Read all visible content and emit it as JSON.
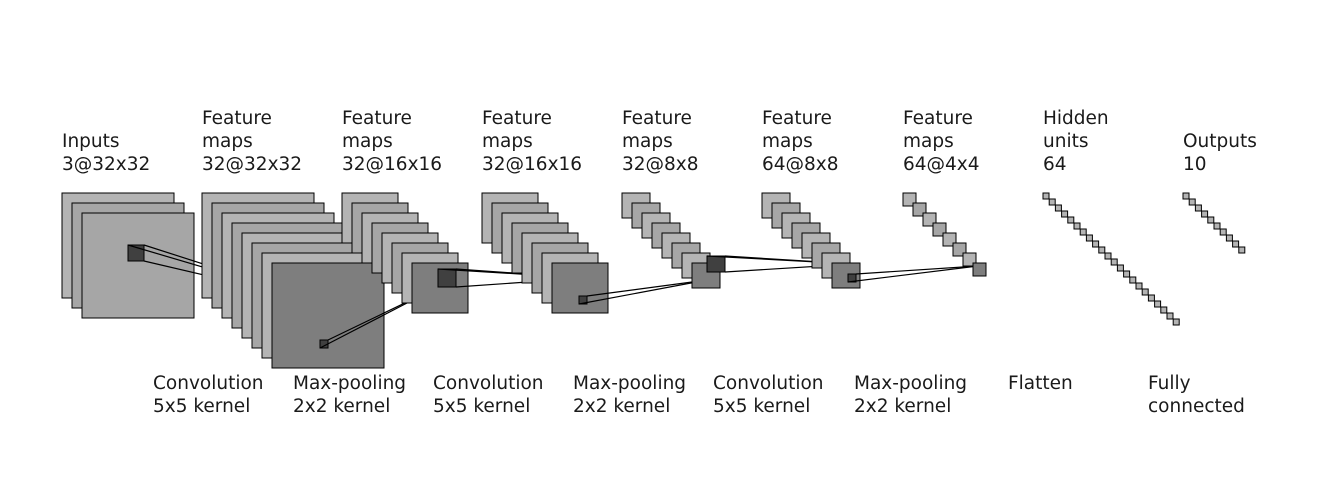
{
  "layers": [
    {
      "lines": [
        "Inputs",
        "3@32x32"
      ]
    },
    {
      "lines": [
        "Feature",
        "maps",
        "32@32x32"
      ]
    },
    {
      "lines": [
        "Feature",
        "maps",
        "32@16x16"
      ]
    },
    {
      "lines": [
        "Feature",
        "maps",
        "32@16x16"
      ]
    },
    {
      "lines": [
        "Feature",
        "maps",
        "32@8x8"
      ]
    },
    {
      "lines": [
        "Feature",
        "maps",
        "64@8x8"
      ]
    },
    {
      "lines": [
        "Feature",
        "maps",
        "64@4x4"
      ]
    },
    {
      "lines": [
        "Hidden",
        "units",
        "64"
      ]
    },
    {
      "lines": [
        "Outputs",
        "10"
      ]
    }
  ],
  "operations": [
    {
      "lines": [
        "Convolution",
        "5x5 kernel"
      ]
    },
    {
      "lines": [
        "Max-pooling",
        "2x2 kernel"
      ]
    },
    {
      "lines": [
        "Convolution",
        "5x5 kernel"
      ]
    },
    {
      "lines": [
        "Max-pooling",
        "2x2 kernel"
      ]
    },
    {
      "lines": [
        "Convolution",
        "5x5 kernel"
      ]
    },
    {
      "lines": [
        "Max-pooling",
        "2x2 kernel"
      ]
    },
    {
      "lines": [
        "Flatten"
      ]
    },
    {
      "lines": [
        "Fully",
        "connected"
      ]
    }
  ],
  "colors": {
    "map_light": "#b4b4b4",
    "map_mid": "#a6a6a6",
    "map_dark": "#7e7e7e",
    "kernel": "#404040",
    "stroke": "#000000"
  }
}
